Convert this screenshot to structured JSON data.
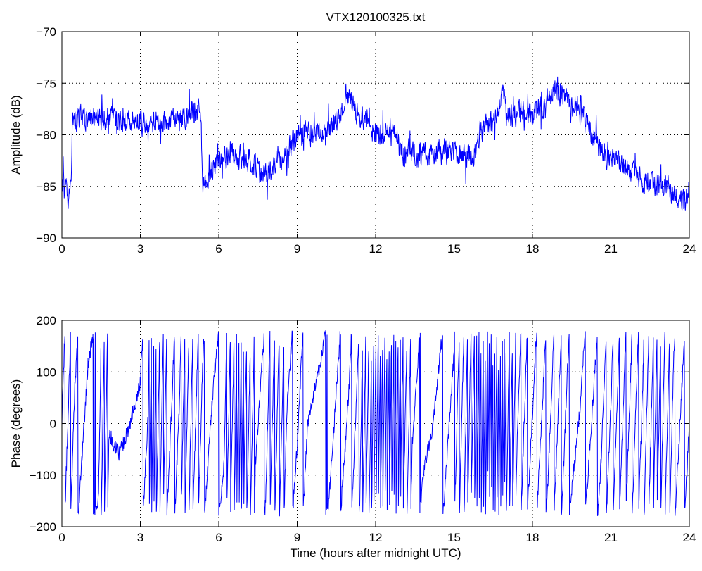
{
  "figure": {
    "title": "VTX120100325.txt"
  },
  "colors": {
    "trace": "#0000ff",
    "axis": "#000000",
    "grid": "#000000",
    "background": "#ffffff"
  },
  "chart_data": [
    {
      "type": "line",
      "title": "VTX120100325.txt",
      "xlabel": "",
      "ylabel": "Amplitude (dB)",
      "xlim": [
        0,
        24
      ],
      "ylim": [
        -90,
        -70
      ],
      "xticks": [
        0,
        3,
        6,
        9,
        12,
        15,
        18,
        21,
        24
      ],
      "yticks": [
        -90,
        -85,
        -80,
        -75,
        -70
      ],
      "grid": true,
      "noise_amplitude": 1.3,
      "series": [
        {
          "x": [
            0,
            0.1,
            0.25,
            0.35,
            0.4,
            1.0,
            2.0,
            3.0,
            3.5,
            4.0,
            4.5,
            5.0,
            5.3,
            5.4,
            5.5,
            5.8,
            6.2,
            6.8,
            7.2,
            7.7,
            8.0,
            8.5,
            9.0,
            9.5,
            10.0,
            10.5,
            10.9,
            11.2,
            11.8,
            12.3,
            12.55,
            12.8,
            13.1,
            13.5,
            14.0,
            14.5,
            15.0,
            15.5,
            15.8,
            16.0,
            16.5,
            16.9,
            17.0,
            17.3,
            18.0,
            18.5,
            18.8,
            19.3,
            19.8,
            20.2,
            20.6,
            21.0,
            21.5,
            22.0,
            22.5,
            23.0,
            23.5,
            23.8,
            24.0
          ],
          "y": [
            -84.5,
            -85.0,
            -86.5,
            -85.0,
            -78.5,
            -78.3,
            -78.5,
            -78.8,
            -78.8,
            -79.0,
            -78.5,
            -77.8,
            -77.5,
            -85.5,
            -84.5,
            -83.0,
            -82.2,
            -81.8,
            -82.5,
            -84.0,
            -83.5,
            -82.0,
            -80.0,
            -79.8,
            -79.8,
            -79.0,
            -76.0,
            -77.5,
            -79.5,
            -80.0,
            -79.0,
            -80.2,
            -82.0,
            -81.8,
            -81.8,
            -81.8,
            -81.5,
            -82.0,
            -82.0,
            -79.5,
            -79.0,
            -76.0,
            -78.0,
            -78.0,
            -78.0,
            -77.5,
            -75.5,
            -76.5,
            -77.0,
            -79.5,
            -81.5,
            -82.5,
            -83.0,
            -84.0,
            -84.5,
            -85.0,
            -86.0,
            -86.8,
            -85.0
          ]
        }
      ]
    },
    {
      "type": "line",
      "title": "",
      "xlabel": "Time (hours after midnight UTC)",
      "ylabel": "Phase (degrees)",
      "xlim": [
        0,
        24
      ],
      "ylim": [
        -200,
        200
      ],
      "xticks": [
        0,
        3,
        6,
        9,
        12,
        15,
        18,
        21,
        24
      ],
      "yticks": [
        -200,
        -100,
        0,
        100,
        200
      ],
      "grid": true,
      "wrap_range": [
        -180,
        180
      ],
      "series": [
        {
          "x": [
            0,
            0.5,
            1.0,
            1.4,
            1.8,
            2.2,
            2.6,
            3.0,
            3.3,
            3.6,
            4.0,
            4.5,
            5.0,
            5.4,
            5.8,
            6.2,
            6.6,
            7.0,
            7.4,
            7.8,
            8.2,
            8.6,
            9.0,
            9.4,
            9.8,
            10.2,
            10.6,
            11.0,
            11.4,
            11.8,
            12.2,
            12.6,
            13.0,
            13.4,
            13.8,
            14.2,
            14.6,
            15.0,
            15.4,
            15.8,
            16.2,
            16.6,
            17.0,
            17.4,
            17.8,
            18.2,
            18.6,
            19.0,
            19.4,
            19.8,
            20.2,
            20.6,
            21.0,
            21.4,
            21.8,
            22.2,
            22.6,
            23.0,
            23.4,
            23.8,
            24.0
          ],
          "y": [
            0,
            800,
            1200,
            1300,
            2500,
            2460,
            2520,
            2600,
            2900,
            4100,
            5200,
            5800,
            7000,
            7700,
            8000,
            8200,
            9200,
            10800,
            11800,
            12100,
            12900,
            13700,
            14000,
            14400,
            14500,
            14600,
            14900,
            15200,
            15700,
            16900,
            18600,
            20300,
            22000,
            23000,
            23300,
            23400,
            23600,
            23900,
            24700,
            25800,
            27500,
            29500,
            31500,
            32700,
            33300,
            33700,
            34100,
            34600,
            35100,
            35300,
            35600,
            35900,
            36400,
            37000,
            37600,
            38200,
            39000,
            40000,
            40800,
            41200,
            41400
          ]
        }
      ]
    }
  ]
}
